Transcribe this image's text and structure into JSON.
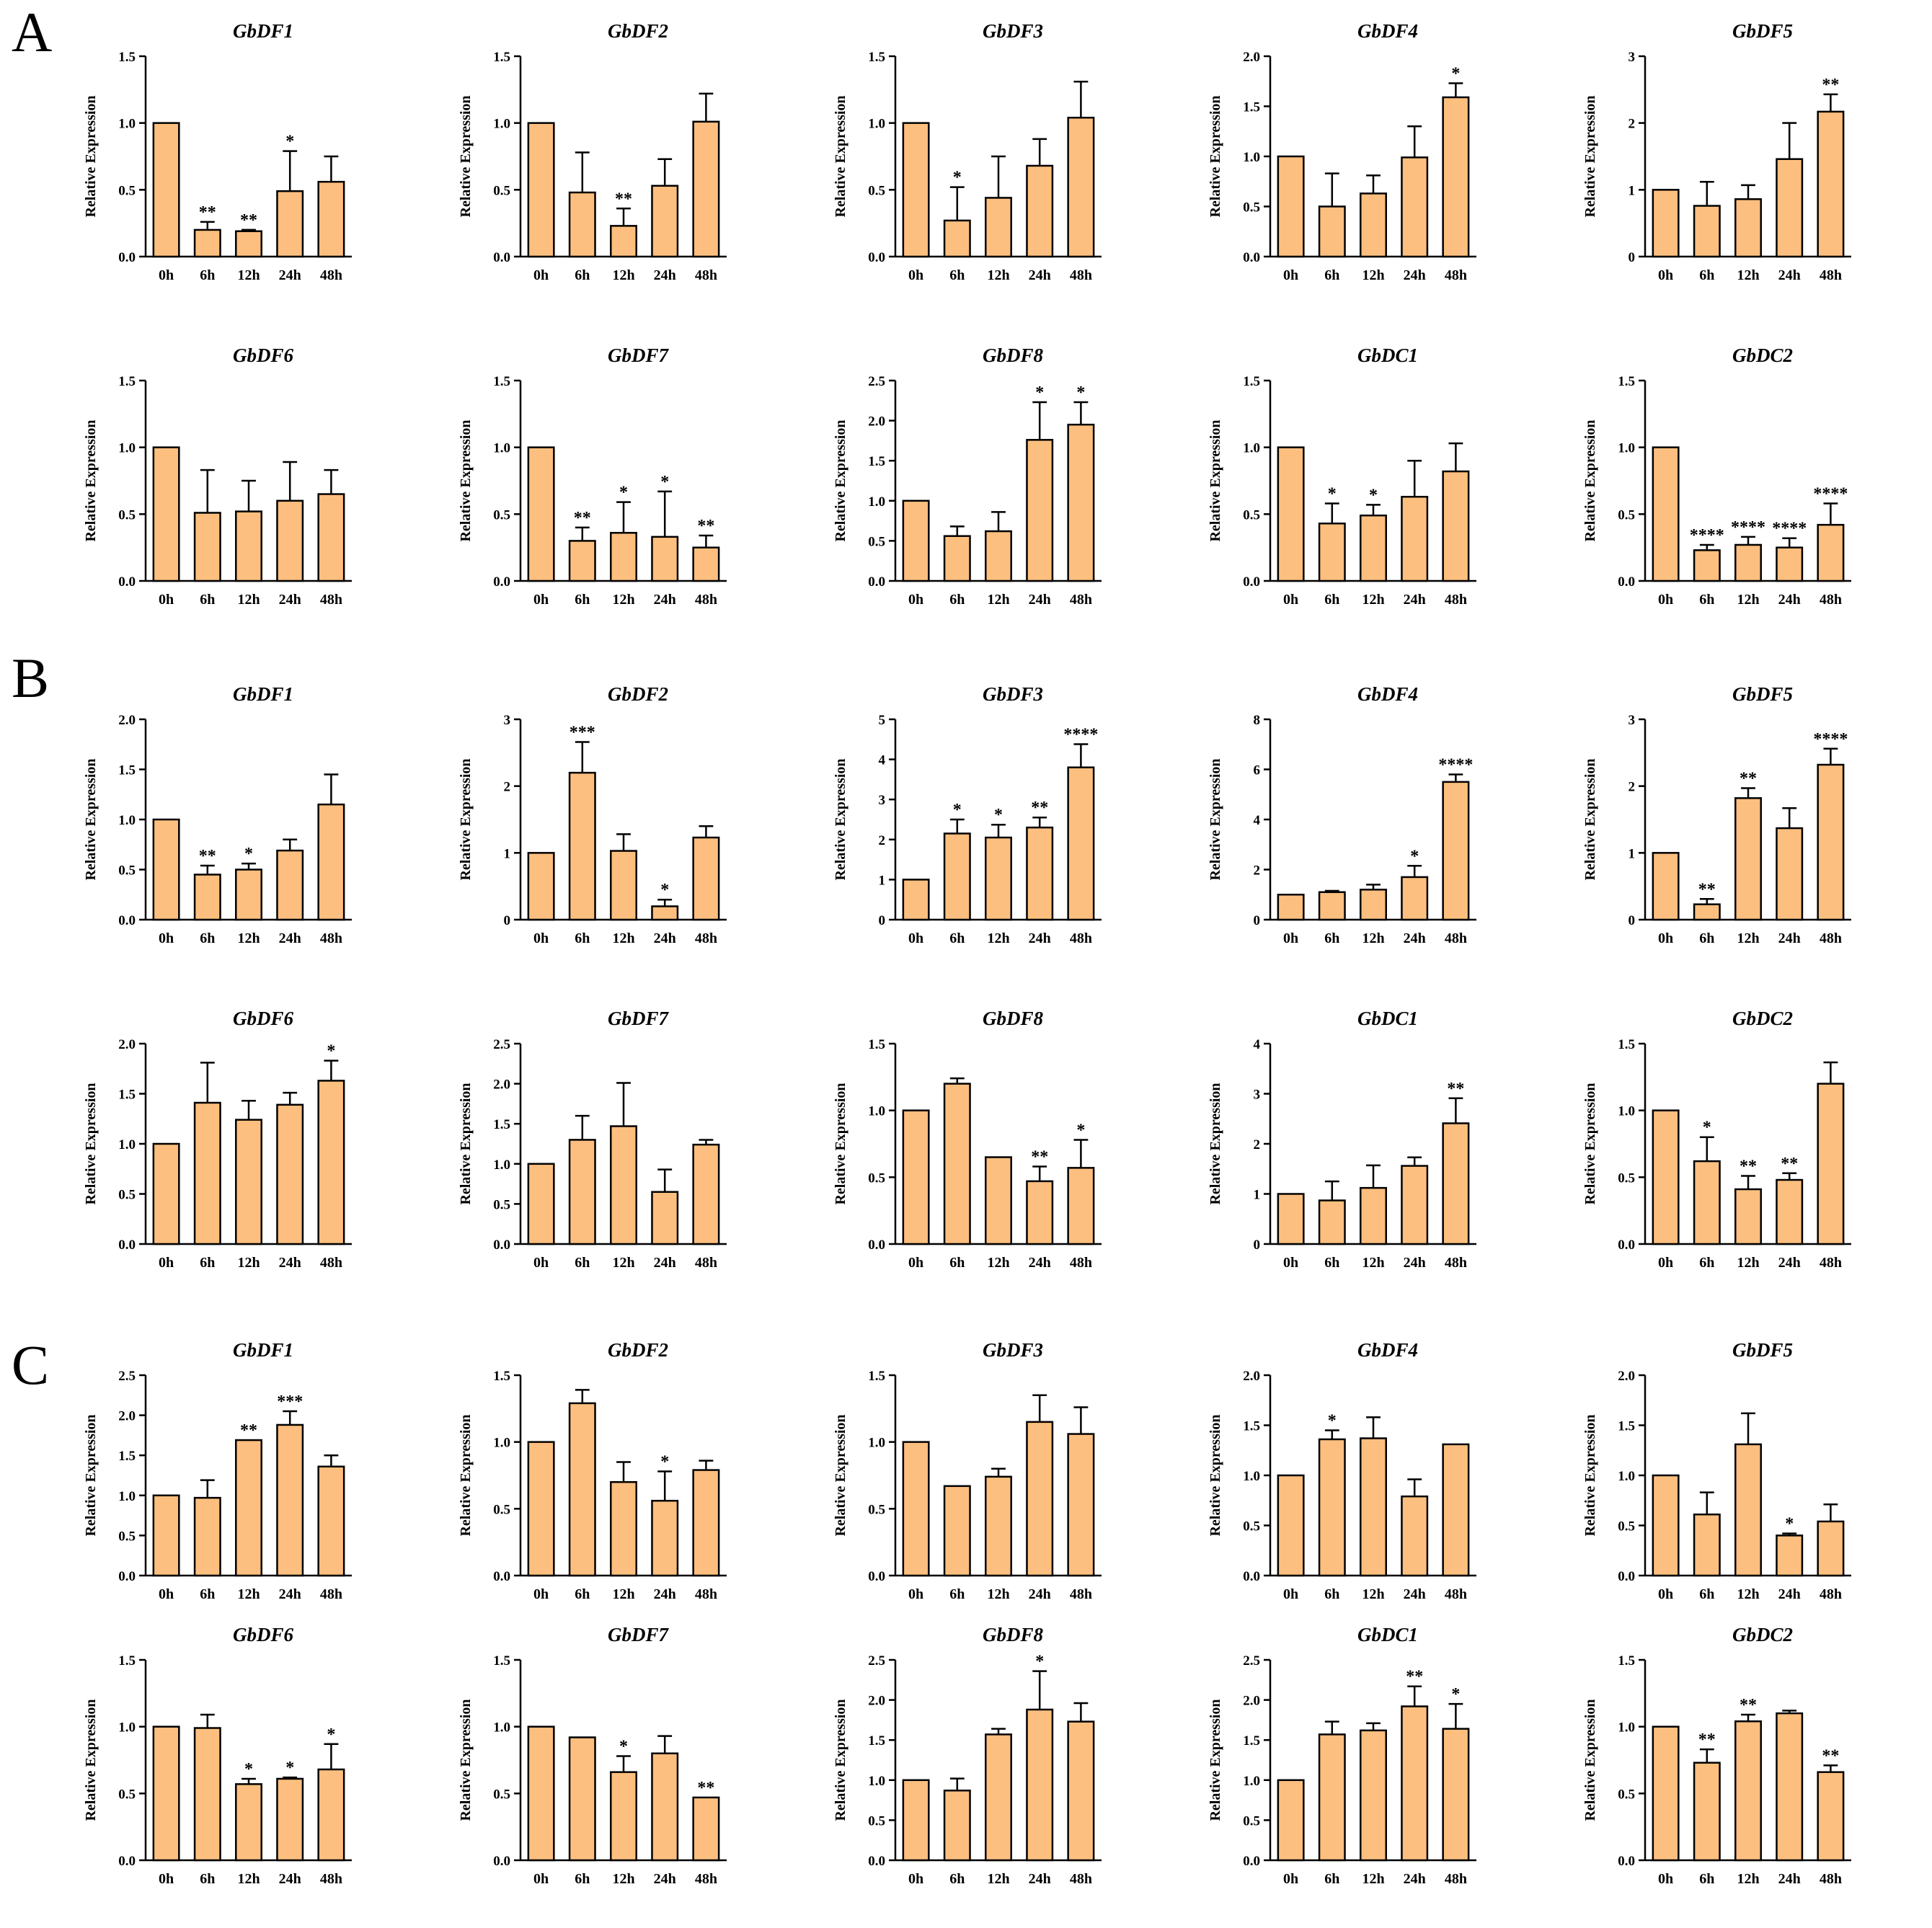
{
  "figure": {
    "panels": [
      "A",
      "B",
      "C"
    ],
    "bar_color": "#FDBF7F",
    "bar_stroke": "#000000",
    "ylabel": "Relative Expression",
    "categories": [
      "0h",
      "6h",
      "12h",
      "24h",
      "48h"
    ]
  },
  "chart_data": [
    {
      "panel": "A",
      "type": "bar",
      "title": "GbDF1",
      "ylabel": "Relative Expression",
      "categories": [
        "0h",
        "6h",
        "12h",
        "24h",
        "48h"
      ],
      "ylim": [
        0,
        1.5
      ],
      "yticks": [
        "0.0",
        "0.5",
        "1.0",
        "1.5"
      ],
      "values": [
        1.0,
        0.2,
        0.19,
        0.49,
        0.56
      ],
      "errors": [
        0,
        0.06,
        0.01,
        0.3,
        0.19
      ],
      "significance": [
        "",
        "**",
        "**",
        "*",
        ""
      ]
    },
    {
      "panel": "A",
      "type": "bar",
      "title": "GbDF2",
      "ylabel": "Relative Expression",
      "categories": [
        "0h",
        "6h",
        "12h",
        "24h",
        "48h"
      ],
      "ylim": [
        0,
        1.5
      ],
      "yticks": [
        "0.0",
        "0.5",
        "1.0",
        "1.5"
      ],
      "values": [
        1.0,
        0.48,
        0.23,
        0.53,
        1.01
      ],
      "errors": [
        0,
        0.3,
        0.13,
        0.2,
        0.21
      ],
      "significance": [
        "",
        "",
        "**",
        "",
        ""
      ]
    },
    {
      "panel": "A",
      "type": "bar",
      "title": "GbDF3",
      "ylabel": "Relative Expression",
      "categories": [
        "0h",
        "6h",
        "12h",
        "24h",
        "48h"
      ],
      "ylim": [
        0,
        1.5
      ],
      "yticks": [
        "0.0",
        "0.5",
        "1.0",
        "1.5"
      ],
      "values": [
        1.0,
        0.27,
        0.44,
        0.68,
        1.04
      ],
      "errors": [
        0,
        0.25,
        0.31,
        0.2,
        0.27
      ],
      "significance": [
        "",
        "*",
        "",
        "",
        ""
      ]
    },
    {
      "panel": "A",
      "type": "bar",
      "title": "GbDF4",
      "ylabel": "Relative Expression",
      "categories": [
        "0h",
        "6h",
        "12h",
        "24h",
        "48h"
      ],
      "ylim": [
        0,
        2.0
      ],
      "yticks": [
        "0.0",
        "0.5",
        "1.0",
        "1.5",
        "2.0"
      ],
      "values": [
        1.0,
        0.5,
        0.63,
        0.99,
        1.59
      ],
      "errors": [
        0,
        0.33,
        0.18,
        0.31,
        0.14
      ],
      "significance": [
        "",
        "",
        "",
        "",
        "*"
      ]
    },
    {
      "panel": "A",
      "type": "bar",
      "title": "GbDF5",
      "ylabel": "Relative Expression",
      "categories": [
        "0h",
        "6h",
        "12h",
        "24h",
        "48h"
      ],
      "ylim": [
        0,
        3
      ],
      "yticks": [
        "0",
        "1",
        "2",
        "3"
      ],
      "values": [
        1.0,
        0.76,
        0.86,
        1.46,
        2.17
      ],
      "errors": [
        0,
        0.36,
        0.21,
        0.54,
        0.26
      ],
      "significance": [
        "",
        "",
        "",
        "",
        "**"
      ]
    },
    {
      "panel": "A",
      "type": "bar",
      "title": "GbDF6",
      "ylabel": "Relative Expression",
      "categories": [
        "0h",
        "6h",
        "12h",
        "24h",
        "48h"
      ],
      "ylim": [
        0,
        1.5
      ],
      "yticks": [
        "0.0",
        "0.5",
        "1.0",
        "1.5"
      ],
      "values": [
        1.0,
        0.51,
        0.52,
        0.6,
        0.65
      ],
      "errors": [
        0,
        0.32,
        0.23,
        0.29,
        0.18
      ],
      "significance": [
        "",
        "",
        "",
        "",
        ""
      ]
    },
    {
      "panel": "A",
      "type": "bar",
      "title": "GbDF7",
      "ylabel": "Relative Expression",
      "categories": [
        "0h",
        "6h",
        "12h",
        "24h",
        "48h"
      ],
      "ylim": [
        0,
        1.5
      ],
      "yticks": [
        "0.0",
        "0.5",
        "1.0",
        "1.5"
      ],
      "values": [
        1.0,
        0.3,
        0.36,
        0.33,
        0.25
      ],
      "errors": [
        0,
        0.1,
        0.23,
        0.34,
        0.09
      ],
      "significance": [
        "",
        "**",
        "*",
        "*",
        "**"
      ]
    },
    {
      "panel": "A",
      "type": "bar",
      "title": "GbDF8",
      "ylabel": "Relative Expression",
      "categories": [
        "0h",
        "6h",
        "12h",
        "24h",
        "48h"
      ],
      "ylim": [
        0,
        2.5
      ],
      "yticks": [
        "0.0",
        "0.5",
        "1.0",
        "1.5",
        "2.0",
        "2.5"
      ],
      "values": [
        1.0,
        0.56,
        0.62,
        1.76,
        1.95
      ],
      "errors": [
        0,
        0.12,
        0.24,
        0.47,
        0.28
      ],
      "significance": [
        "",
        "",
        "",
        "*",
        "*"
      ]
    },
    {
      "panel": "A",
      "type": "bar",
      "title": "GbDC1",
      "ylabel": "Relative Expression",
      "categories": [
        "0h",
        "6h",
        "12h",
        "24h",
        "48h"
      ],
      "ylim": [
        0,
        1.5
      ],
      "yticks": [
        "0.0",
        "0.5",
        "1.0",
        "1.5"
      ],
      "values": [
        1.0,
        0.43,
        0.49,
        0.63,
        0.82
      ],
      "errors": [
        0,
        0.15,
        0.08,
        0.27,
        0.21
      ],
      "significance": [
        "",
        "*",
        "*",
        "",
        ""
      ]
    },
    {
      "panel": "A",
      "type": "bar",
      "title": "GbDC2",
      "ylabel": "Relative Expression",
      "categories": [
        "0h",
        "6h",
        "12h",
        "24h",
        "48h"
      ],
      "ylim": [
        0,
        1.5
      ],
      "yticks": [
        "0.0",
        "0.5",
        "1.0",
        "1.5"
      ],
      "values": [
        1.0,
        0.23,
        0.27,
        0.25,
        0.42
      ],
      "errors": [
        0,
        0.04,
        0.06,
        0.07,
        0.16
      ],
      "significance": [
        "",
        "****",
        "****",
        "****",
        "****"
      ]
    },
    {
      "panel": "B",
      "type": "bar",
      "title": "GbDF1",
      "ylabel": "Relative Expression",
      "categories": [
        "0h",
        "6h",
        "12h",
        "24h",
        "48h"
      ],
      "ylim": [
        0,
        2.0
      ],
      "yticks": [
        "0.0",
        "0.5",
        "1.0",
        "1.5",
        "2.0"
      ],
      "values": [
        1.0,
        0.45,
        0.5,
        0.69,
        1.15
      ],
      "errors": [
        0,
        0.09,
        0.06,
        0.11,
        0.3
      ],
      "significance": [
        "",
        "**",
        "*",
        "",
        ""
      ]
    },
    {
      "panel": "B",
      "type": "bar",
      "title": "GbDF2",
      "ylabel": "Relative Expression",
      "categories": [
        "0h",
        "6h",
        "12h",
        "24h",
        "48h"
      ],
      "ylim": [
        0,
        3
      ],
      "yticks": [
        "0",
        "1",
        "2",
        "3"
      ],
      "values": [
        1.0,
        2.2,
        1.03,
        0.2,
        1.23
      ],
      "errors": [
        0,
        0.46,
        0.25,
        0.1,
        0.17
      ],
      "significance": [
        "",
        "***",
        "",
        "*",
        ""
      ]
    },
    {
      "panel": "B",
      "type": "bar",
      "title": "GbDF3",
      "ylabel": "Relative Expression",
      "categories": [
        "0h",
        "6h",
        "12h",
        "24h",
        "48h"
      ],
      "ylim": [
        0,
        5
      ],
      "yticks": [
        "0",
        "1",
        "2",
        "3",
        "4",
        "5"
      ],
      "values": [
        1.0,
        2.15,
        2.05,
        2.3,
        3.8
      ],
      "errors": [
        0,
        0.35,
        0.32,
        0.25,
        0.58
      ],
      "significance": [
        "",
        "*",
        "*",
        "**",
        "****"
      ]
    },
    {
      "panel": "B",
      "type": "bar",
      "title": "GbDF4",
      "ylabel": "Relative Expression",
      "categories": [
        "0h",
        "6h",
        "12h",
        "24h",
        "48h"
      ],
      "ylim": [
        0,
        8
      ],
      "yticks": [
        "0",
        "2",
        "4",
        "6",
        "8"
      ],
      "values": [
        1.0,
        1.1,
        1.2,
        1.7,
        5.5
      ],
      "errors": [
        0,
        0.05,
        0.2,
        0.45,
        0.3
      ],
      "significance": [
        "",
        "",
        "",
        "*",
        "****"
      ]
    },
    {
      "panel": "B",
      "type": "bar",
      "title": "GbDF5",
      "ylabel": "Relative Expression",
      "categories": [
        "0h",
        "6h",
        "12h",
        "24h",
        "48h"
      ],
      "ylim": [
        0,
        3
      ],
      "yticks": [
        "0",
        "1",
        "2",
        "3"
      ],
      "values": [
        1.0,
        0.23,
        1.82,
        1.37,
        2.32
      ],
      "errors": [
        0,
        0.08,
        0.15,
        0.3,
        0.24
      ],
      "significance": [
        "",
        "**",
        "**",
        "",
        "****"
      ]
    },
    {
      "panel": "B",
      "type": "bar",
      "title": "GbDF6",
      "ylabel": "Relative Expression",
      "categories": [
        "0h",
        "6h",
        "12h",
        "24h",
        "48h"
      ],
      "ylim": [
        0,
        2.0
      ],
      "yticks": [
        "0.0",
        "0.5",
        "1.0",
        "1.5",
        "2.0"
      ],
      "values": [
        1.0,
        1.41,
        1.24,
        1.39,
        1.63
      ],
      "errors": [
        0,
        0.4,
        0.19,
        0.12,
        0.2
      ],
      "significance": [
        "",
        "",
        "",
        "",
        "*"
      ]
    },
    {
      "panel": "B",
      "type": "bar",
      "title": "GbDF7",
      "ylabel": "Relative Expression",
      "categories": [
        "0h",
        "6h",
        "12h",
        "24h",
        "48h"
      ],
      "ylim": [
        0,
        2.5
      ],
      "yticks": [
        "0.0",
        "0.5",
        "1.0",
        "1.5",
        "2.0",
        "2.5"
      ],
      "values": [
        1.0,
        1.3,
        1.47,
        0.65,
        1.24
      ],
      "errors": [
        0,
        0.3,
        0.54,
        0.28,
        0.06
      ],
      "significance": [
        "",
        "",
        "",
        "",
        ""
      ]
    },
    {
      "panel": "B",
      "type": "bar",
      "title": "GbDF8",
      "ylabel": "Relative Expression",
      "categories": [
        "0h",
        "6h",
        "12h",
        "24h",
        "48h"
      ],
      "ylim": [
        0,
        1.5
      ],
      "yticks": [
        "0.0",
        "0.5",
        "1.0",
        "1.5"
      ],
      "values": [
        1.0,
        1.2,
        0.65,
        0.47,
        0.57
      ],
      "errors": [
        0,
        0.04,
        0,
        0.11,
        0.21
      ],
      "significance": [
        "",
        "",
        "",
        "**",
        "*"
      ]
    },
    {
      "panel": "B",
      "type": "bar",
      "title": "GbDC1",
      "ylabel": "Relative Expression",
      "categories": [
        "0h",
        "6h",
        "12h",
        "24h",
        "48h"
      ],
      "ylim": [
        0,
        4
      ],
      "yticks": [
        "0",
        "1",
        "2",
        "3",
        "4"
      ],
      "values": [
        1.0,
        0.87,
        1.12,
        1.56,
        2.41
      ],
      "errors": [
        0,
        0.38,
        0.45,
        0.17,
        0.5
      ],
      "significance": [
        "",
        "",
        "",
        "",
        "**"
      ]
    },
    {
      "panel": "B",
      "type": "bar",
      "title": "GbDC2",
      "ylabel": "Relative Expression",
      "categories": [
        "0h",
        "6h",
        "12h",
        "24h",
        "48h"
      ],
      "ylim": [
        0,
        1.5
      ],
      "yticks": [
        "0.0",
        "0.5",
        "1.0",
        "1.5"
      ],
      "values": [
        1.0,
        0.62,
        0.41,
        0.48,
        1.2
      ],
      "errors": [
        0,
        0.18,
        0.1,
        0.05,
        0.16
      ],
      "significance": [
        "",
        "*",
        "**",
        "**",
        ""
      ]
    },
    {
      "panel": "C",
      "type": "bar",
      "title": "GbDF1",
      "ylabel": "Relative Expression",
      "categories": [
        "0h",
        "6h",
        "12h",
        "24h",
        "48h"
      ],
      "ylim": [
        0,
        2.5
      ],
      "yticks": [
        "0.0",
        "0.5",
        "1.0",
        "1.5",
        "2.0",
        "2.5"
      ],
      "values": [
        1.0,
        0.97,
        1.69,
        1.88,
        1.36
      ],
      "errors": [
        0,
        0.22,
        0,
        0.17,
        0.14
      ],
      "significance": [
        "",
        "",
        "**",
        "***",
        ""
      ]
    },
    {
      "panel": "C",
      "type": "bar",
      "title": "GbDF2",
      "ylabel": "Relative Expression",
      "categories": [
        "0h",
        "6h",
        "12h",
        "24h",
        "48h"
      ],
      "ylim": [
        0,
        1.5
      ],
      "yticks": [
        "0.0",
        "0.5",
        "1.0",
        "1.5"
      ],
      "values": [
        1.0,
        1.29,
        0.7,
        0.56,
        0.79
      ],
      "errors": [
        0,
        0.1,
        0.15,
        0.22,
        0.07
      ],
      "significance": [
        "",
        "",
        "",
        "*",
        ""
      ]
    },
    {
      "panel": "C",
      "type": "bar",
      "title": "GbDF3",
      "ylabel": "Relative Expression",
      "categories": [
        "0h",
        "6h",
        "12h",
        "24h",
        "48h"
      ],
      "ylim": [
        0,
        1.5
      ],
      "yticks": [
        "0.0",
        "0.5",
        "1.0",
        "1.5"
      ],
      "values": [
        1.0,
        0.67,
        0.74,
        1.15,
        1.06
      ],
      "errors": [
        0,
        0,
        0.06,
        0.2,
        0.2
      ],
      "significance": [
        "",
        "",
        "",
        "",
        ""
      ]
    },
    {
      "panel": "C",
      "type": "bar",
      "title": "GbDF4",
      "ylabel": "Relative Expression",
      "categories": [
        "0h",
        "6h",
        "12h",
        "24h",
        "48h"
      ],
      "ylim": [
        0,
        2.0
      ],
      "yticks": [
        "0.0",
        "0.5",
        "1.0",
        "1.5",
        "2.0"
      ],
      "values": [
        1.0,
        1.36,
        1.37,
        0.79,
        1.31
      ],
      "errors": [
        0,
        0.09,
        0.21,
        0.17,
        0
      ],
      "significance": [
        "",
        "*",
        "",
        "",
        ""
      ]
    },
    {
      "panel": "C",
      "type": "bar",
      "title": "GbDF5",
      "ylabel": "Relative Expression",
      "categories": [
        "0h",
        "6h",
        "12h",
        "24h",
        "48h"
      ],
      "ylim": [
        0,
        2.0
      ],
      "yticks": [
        "0.0",
        "0.5",
        "1.0",
        "1.5",
        "2.0"
      ],
      "values": [
        1.0,
        0.61,
        1.31,
        0.4,
        0.54
      ],
      "errors": [
        0,
        0.22,
        0.31,
        0.02,
        0.17
      ],
      "significance": [
        "",
        "",
        "",
        "*",
        ""
      ]
    },
    {
      "panel": "C",
      "type": "bar",
      "title": "GbDF6",
      "ylabel": "Relative Expression",
      "categories": [
        "0h",
        "6h",
        "12h",
        "24h",
        "48h"
      ],
      "ylim": [
        0,
        1.5
      ],
      "yticks": [
        "0.0",
        "0.5",
        "1.0",
        "1.5"
      ],
      "values": [
        1.0,
        0.99,
        0.57,
        0.61,
        0.68
      ],
      "errors": [
        0,
        0.1,
        0.04,
        0.01,
        0.19
      ],
      "significance": [
        "",
        "",
        "*",
        "*",
        "*"
      ]
    },
    {
      "panel": "C",
      "type": "bar",
      "title": "GbDF7",
      "ylabel": "Relative Expression",
      "categories": [
        "0h",
        "6h",
        "12h",
        "24h",
        "48h"
      ],
      "ylim": [
        0,
        1.5
      ],
      "yticks": [
        "0.0",
        "0.5",
        "1.0",
        "1.5"
      ],
      "values": [
        1.0,
        0.92,
        0.66,
        0.8,
        0.47
      ],
      "errors": [
        0,
        0,
        0.12,
        0.13,
        0
      ],
      "significance": [
        "",
        "",
        "*",
        "",
        "**"
      ]
    },
    {
      "panel": "C",
      "type": "bar",
      "title": "GbDF8",
      "ylabel": "Relative Expression",
      "categories": [
        "0h",
        "6h",
        "12h",
        "24h",
        "48h"
      ],
      "ylim": [
        0,
        2.5
      ],
      "yticks": [
        "0.0",
        "0.5",
        "1.0",
        "1.5",
        "2.0",
        "2.5"
      ],
      "values": [
        1.0,
        0.87,
        1.57,
        1.88,
        1.73
      ],
      "errors": [
        0,
        0.15,
        0.07,
        0.48,
        0.23
      ],
      "significance": [
        "",
        "",
        "",
        "*",
        ""
      ]
    },
    {
      "panel": "C",
      "type": "bar",
      "title": "GbDC1",
      "ylabel": "Relative Expression",
      "categories": [
        "0h",
        "6h",
        "12h",
        "24h",
        "48h"
      ],
      "ylim": [
        0,
        2.5
      ],
      "yticks": [
        "0.0",
        "0.5",
        "1.0",
        "1.5",
        "2.0",
        "2.5"
      ],
      "values": [
        1.0,
        1.57,
        1.62,
        1.92,
        1.64
      ],
      "errors": [
        0,
        0.16,
        0.09,
        0.25,
        0.31
      ],
      "significance": [
        "",
        "",
        "",
        "**",
        "*"
      ]
    },
    {
      "panel": "C",
      "type": "bar",
      "title": "GbDC2",
      "ylabel": "Relative Expression",
      "categories": [
        "0h",
        "6h",
        "12h",
        "24h",
        "48h"
      ],
      "ylim": [
        0,
        1.5
      ],
      "yticks": [
        "0.0",
        "0.5",
        "1.0",
        "1.5"
      ],
      "values": [
        1.0,
        0.73,
        1.04,
        1.1,
        0.66
      ],
      "errors": [
        0,
        0.1,
        0.05,
        0.02,
        0.05
      ],
      "significance": [
        "",
        "**",
        "**",
        "",
        "**"
      ]
    }
  ]
}
